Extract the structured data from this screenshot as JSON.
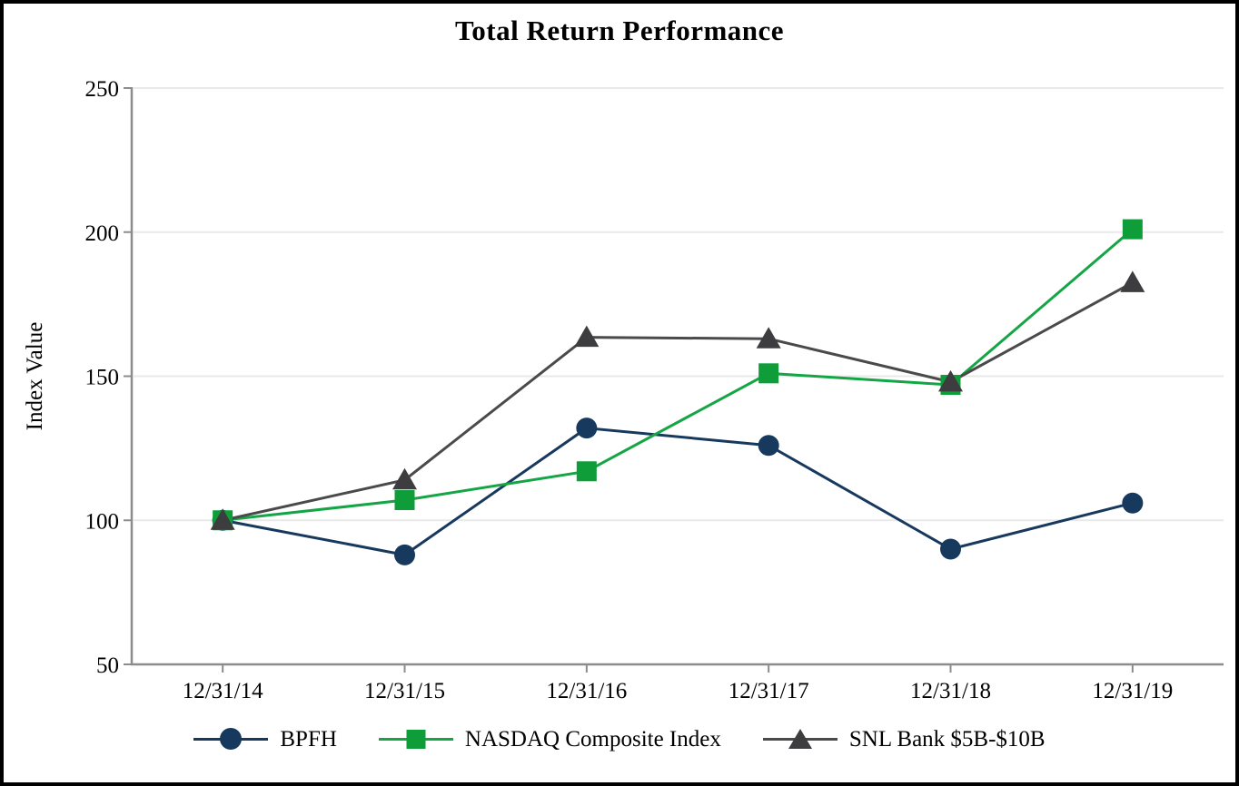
{
  "title": "Total Return Performance",
  "chart_data": {
    "type": "line",
    "title": "Total Return Performance",
    "xlabel": "",
    "ylabel": "Index Value",
    "ylim": [
      50,
      250
    ],
    "yticks": [
      50,
      100,
      150,
      200,
      250
    ],
    "grid": true,
    "legend_position": "bottom",
    "categories": [
      "12/31/14",
      "12/31/15",
      "12/31/16",
      "12/31/17",
      "12/31/18",
      "12/31/19"
    ],
    "series": [
      {
        "name": "BPFH",
        "marker": "circle",
        "color": "#17395E",
        "line_color": "#17395E",
        "values": [
          100,
          88,
          132,
          126,
          90,
          106
        ]
      },
      {
        "name": "NASDAQ Composite Index",
        "marker": "square",
        "color": "#0F9D3A",
        "line_color": "#14A545",
        "values": [
          100,
          107,
          117,
          151,
          147,
          201
        ]
      },
      {
        "name": "SNL Bank $5B-$10B",
        "marker": "triangle",
        "color": "#3D3D3F",
        "line_color": "#4A4A4A",
        "values": [
          100,
          114,
          163.5,
          163,
          148,
          182.5
        ]
      }
    ]
  },
  "style": {
    "background": "#FFFFFF",
    "frame_border": "#000000",
    "grid_color": "#E9E9E9",
    "axis_color": "#8C8C8C",
    "text_color": "#000000"
  }
}
